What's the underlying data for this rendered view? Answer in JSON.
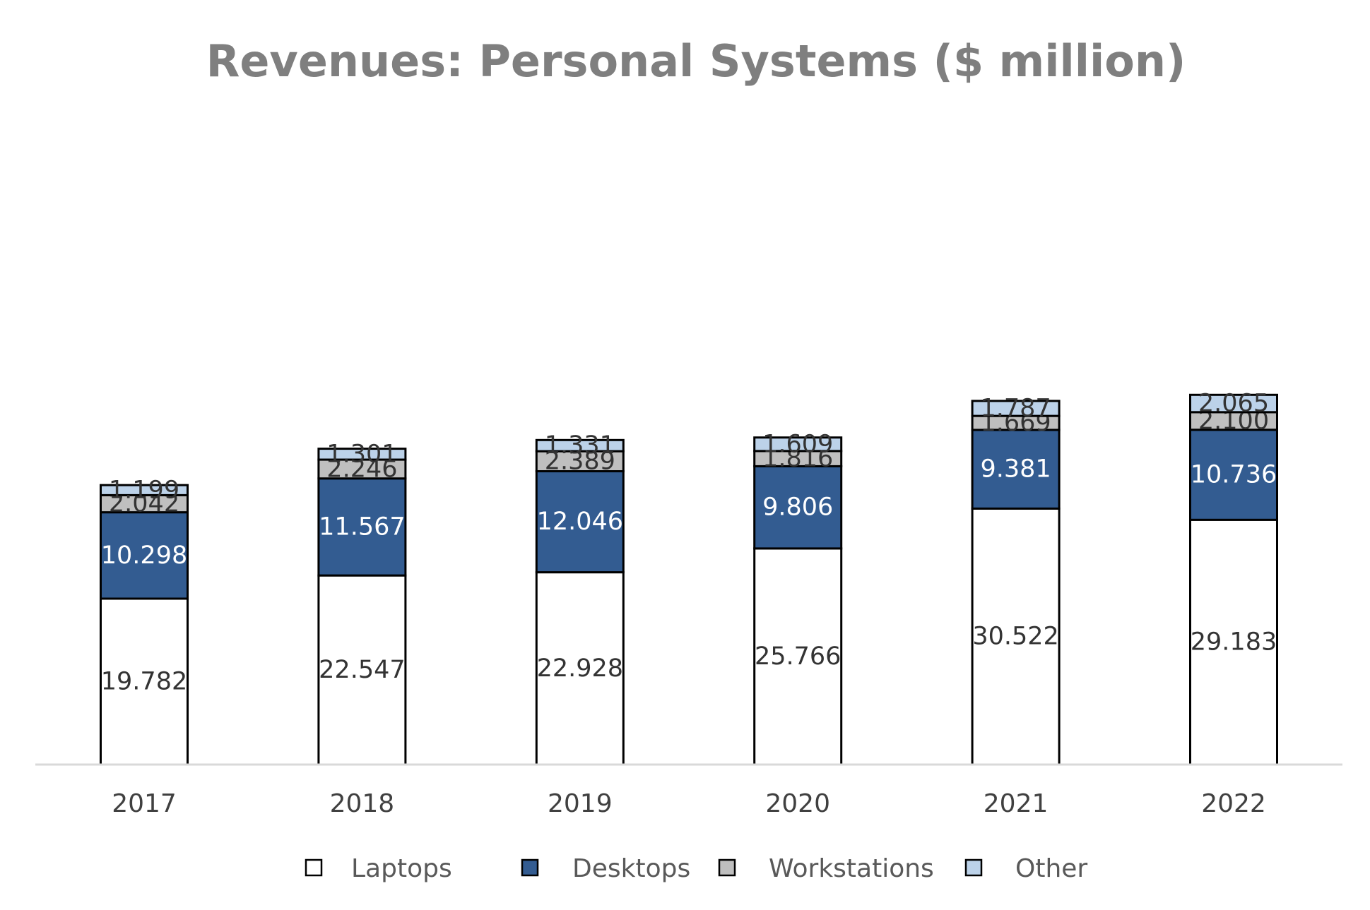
{
  "chart_data": {
    "type": "bar",
    "stacked": true,
    "title": "Revenues: Personal Systems ($ million)",
    "xlabel": "",
    "ylabel": "",
    "categories": [
      "2017",
      "2018",
      "2019",
      "2020",
      "2021",
      "2022"
    ],
    "series": [
      {
        "name": "Laptops",
        "values": [
          19782,
          22547,
          22928,
          25766,
          30522,
          29183
        ],
        "labels": [
          "19.782",
          "22.547",
          "22.928",
          "25.766",
          "30.522",
          "29.183"
        ],
        "color": "#ffffff",
        "label_color": "#333333"
      },
      {
        "name": "Desktops",
        "values": [
          10298,
          11567,
          12046,
          9806,
          9381,
          10736
        ],
        "labels": [
          "10.298",
          "11.567",
          "12.046",
          "9.806",
          "9.381",
          "10.736"
        ],
        "color": "#335c91",
        "label_color": "#ffffff"
      },
      {
        "name": "Workstations",
        "values": [
          2042,
          2246,
          2389,
          1816,
          1669,
          2100
        ],
        "labels": [
          "2.042",
          "2.246",
          "2.389",
          "1.816",
          "1.669",
          "2.100"
        ],
        "color": "#bfbfbf",
        "label_color": "#333333"
      },
      {
        "name": "Other",
        "values": [
          1199,
          1301,
          1331,
          1609,
          1787,
          2065
        ],
        "labels": [
          "1.199",
          "1.301",
          "1.331",
          "1.609",
          "1.787",
          "2.065"
        ],
        "color": "#bcd2e9",
        "label_color": "#333333"
      }
    ],
    "ylim": [
      0,
      44000
    ],
    "grid": false,
    "legend_position": "bottom"
  }
}
